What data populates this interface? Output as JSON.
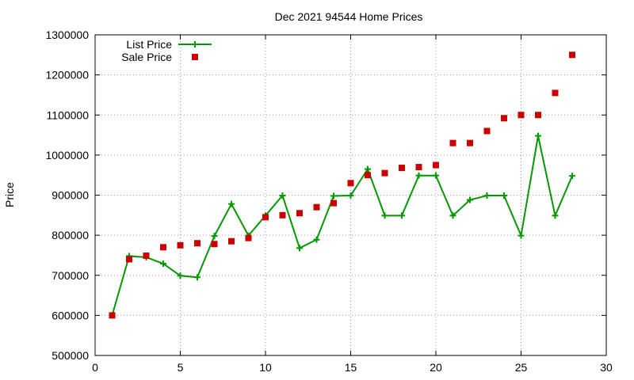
{
  "chart_data": {
    "type": "line",
    "title": "Dec 2021 94544 Home Prices",
    "xlabel": "",
    "ylabel": "Price",
    "xlim": [
      0,
      30
    ],
    "ylim": [
      500000,
      1300000
    ],
    "xticks": [
      0,
      5,
      10,
      15,
      20,
      25,
      30
    ],
    "yticks": [
      500000,
      600000,
      700000,
      800000,
      900000,
      1000000,
      1100000,
      1200000,
      1300000
    ],
    "grid": true,
    "legend_position": "top-left",
    "series": [
      {
        "name": "List Price",
        "style": "line+plus",
        "color": "#009900",
        "points": [
          [
            1,
            600000
          ],
          [
            2,
            748000
          ],
          [
            3,
            745000
          ],
          [
            4,
            729000
          ],
          [
            5,
            699000
          ],
          [
            6,
            695000
          ],
          [
            7,
            798000
          ],
          [
            8,
            878000
          ],
          [
            9,
            799000
          ],
          [
            10,
            849000
          ],
          [
            11,
            899000
          ],
          [
            12,
            768000
          ],
          [
            13,
            789000
          ],
          [
            14,
            898000
          ],
          [
            15,
            899000
          ],
          [
            16,
            965000
          ],
          [
            17,
            849000
          ],
          [
            18,
            849000
          ],
          [
            19,
            949000
          ],
          [
            20,
            949000
          ],
          [
            21,
            849000
          ],
          [
            22,
            888000
          ],
          [
            23,
            899000
          ],
          [
            24,
            899000
          ],
          [
            25,
            799000
          ],
          [
            26,
            1048000
          ],
          [
            27,
            849000
          ],
          [
            28,
            948000
          ]
        ]
      },
      {
        "name": "Sale Price",
        "style": "square",
        "color": "#cc0000",
        "points": [
          [
            1,
            600000
          ],
          [
            2,
            740000
          ],
          [
            3,
            749000
          ],
          [
            4,
            770000
          ],
          [
            5,
            775000
          ],
          [
            6,
            780000
          ],
          [
            7,
            778000
          ],
          [
            8,
            785000
          ],
          [
            9,
            793000
          ],
          [
            10,
            845000
          ],
          [
            11,
            850000
          ],
          [
            12,
            855000
          ],
          [
            13,
            870000
          ],
          [
            14,
            880000
          ],
          [
            15,
            930000
          ],
          [
            16,
            950000
          ],
          [
            17,
            955000
          ],
          [
            18,
            968000
          ],
          [
            19,
            970000
          ],
          [
            20,
            975000
          ],
          [
            21,
            1030000
          ],
          [
            22,
            1030000
          ],
          [
            23,
            1060000
          ],
          [
            24,
            1092000
          ],
          [
            25,
            1100000
          ],
          [
            26,
            1100000
          ],
          [
            27,
            1155000
          ],
          [
            28,
            1250000
          ]
        ]
      }
    ]
  }
}
